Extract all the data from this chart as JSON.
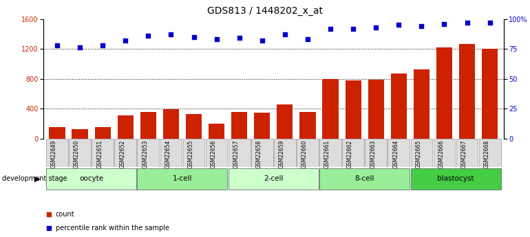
{
  "title": "GDS813 / 1448202_x_at",
  "samples": [
    "GSM22649",
    "GSM22650",
    "GSM22651",
    "GSM22652",
    "GSM22653",
    "GSM22654",
    "GSM22655",
    "GSM22656",
    "GSM22657",
    "GSM22658",
    "GSM22659",
    "GSM22660",
    "GSM22661",
    "GSM22662",
    "GSM22663",
    "GSM22664",
    "GSM22665",
    "GSM22666",
    "GSM22667",
    "GSM22668"
  ],
  "counts": [
    155,
    130,
    155,
    310,
    355,
    390,
    330,
    200,
    355,
    350,
    460,
    360,
    800,
    775,
    790,
    870,
    930,
    1220,
    1270,
    1200
  ],
  "percentiles": [
    78,
    76,
    78,
    82,
    86,
    87,
    85,
    83,
    84,
    82,
    87,
    83,
    92,
    92,
    93,
    95,
    94,
    96,
    97,
    97
  ],
  "groups": [
    {
      "label": "oocyte",
      "start": 0,
      "end": 4,
      "color": "#ccffcc"
    },
    {
      "label": "1-cell",
      "start": 4,
      "end": 8,
      "color": "#99ee99"
    },
    {
      "label": "2-cell",
      "start": 8,
      "end": 12,
      "color": "#ccffcc"
    },
    {
      "label": "8-cell",
      "start": 12,
      "end": 16,
      "color": "#99ee99"
    },
    {
      "label": "blastocyst",
      "start": 16,
      "end": 20,
      "color": "#44cc44"
    }
  ],
  "bar_color": "#cc2200",
  "dot_color": "#0000cc",
  "left_ylim": [
    0,
    1600
  ],
  "right_ylim": [
    0,
    100
  ],
  "left_yticks": [
    0,
    400,
    800,
    1200,
    1600
  ],
  "right_yticks": [
    0,
    25,
    50,
    75,
    100
  ],
  "right_yticklabels": [
    "0",
    "25",
    "50",
    "75",
    "100%"
  ],
  "grid_values": [
    400,
    800,
    1200
  ],
  "xlabel_dev": "development stage",
  "legend_count_label": "count",
  "legend_pct_label": "percentile rank within the sample",
  "title_fontsize": 10,
  "tick_fontsize": 7,
  "label_fontsize": 5.5,
  "group_fontsize": 7.5,
  "legend_fontsize": 7
}
